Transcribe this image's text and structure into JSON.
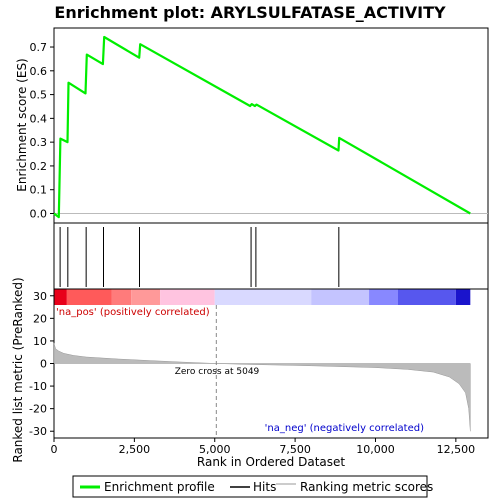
{
  "chart_data": {
    "type": "line",
    "title": "Enrichment plot: ARYLSULFATASE_ACTIVITY",
    "es_panel": {
      "ylabel": "Enrichment score (ES)",
      "ylim": [
        -0.04,
        0.78
      ],
      "yticks": [
        0.0,
        0.1,
        0.2,
        0.3,
        0.4,
        0.5,
        0.6,
        0.7
      ],
      "ytick_labels": [
        "0.0",
        "0.1",
        "0.2",
        "0.3",
        "0.4",
        "0.5",
        "0.6",
        "0.7"
      ],
      "series": [
        {
          "name": "Enrichment profile",
          "color": "#00ee00",
          "x": [
            0,
            150,
            200,
            420,
            450,
            980,
            1020,
            1520,
            1560,
            2650,
            2680,
            6100,
            6150,
            6250,
            6300,
            8850,
            8870,
            12950
          ],
          "y": [
            0.0,
            -0.015,
            0.315,
            0.3,
            0.55,
            0.505,
            0.668,
            0.628,
            0.742,
            0.655,
            0.712,
            0.452,
            0.46,
            0.452,
            0.458,
            0.265,
            0.318,
            0.0
          ]
        }
      ]
    },
    "hits": [
      190,
      430,
      1000,
      1540,
      2660,
      6130,
      6280,
      8860
    ],
    "color_bar": {
      "segments": [
        {
          "from": 0,
          "to": 400,
          "color": "#e8001a"
        },
        {
          "from": 400,
          "to": 1800,
          "color": "#ff5a5a"
        },
        {
          "from": 1800,
          "to": 2400,
          "color": "#ff7b7b"
        },
        {
          "from": 2400,
          "to": 3300,
          "color": "#ff9999"
        },
        {
          "from": 3300,
          "to": 5000,
          "color": "#ffc4e0"
        },
        {
          "from": 5000,
          "to": 8000,
          "color": "#d9d9ff"
        },
        {
          "from": 8000,
          "to": 9800,
          "color": "#c4c4ff"
        },
        {
          "from": 9800,
          "to": 10700,
          "color": "#8888ff"
        },
        {
          "from": 10700,
          "to": 12500,
          "color": "#5757ee"
        },
        {
          "from": 12500,
          "to": 12950,
          "color": "#1a14cc"
        }
      ]
    },
    "metric_panel": {
      "ylabel": "Ranked list metric (PreRanked)",
      "ylim": [
        -33,
        33
      ],
      "yticks": [
        -30,
        -20,
        -10,
        0,
        10,
        20,
        30
      ],
      "ytick_labels": [
        "-30",
        "-20",
        "-10",
        "0",
        "10",
        "20",
        "30"
      ],
      "x": [
        0,
        50,
        150,
        300,
        600,
        1000,
        2000,
        3000,
        4000,
        5049,
        6000,
        8000,
        10000,
        11000,
        11800,
        12300,
        12600,
        12800,
        12900,
        12950
      ],
      "y": [
        9.0,
        6.5,
        5.5,
        4.5,
        3.6,
        2.9,
        2.0,
        1.3,
        0.6,
        0.0,
        -0.4,
        -1.0,
        -1.8,
        -2.6,
        -3.8,
        -6.0,
        -9.0,
        -13.0,
        -20.0,
        -30.0
      ],
      "zero_cross_label": "Zero cross at 5049",
      "zero_cross": 5049,
      "pos_label": "'na_pos' (positively correlated)",
      "neg_label": "'na_neg' (negatively correlated)"
    },
    "x_axis": {
      "xlabel": "Rank in Ordered Dataset",
      "xlim": [
        0,
        13500
      ],
      "xticks": [
        0,
        2500,
        5000,
        7500,
        10000,
        12500
      ],
      "xtick_labels": [
        "0",
        "2,500",
        "5,000",
        "7,500",
        "10,000",
        "12,500"
      ]
    },
    "legend": {
      "placement": "bottom",
      "items": [
        {
          "label": "Enrichment profile",
          "color": "#00ee00"
        },
        {
          "label": "Hits",
          "color": "#000000"
        },
        {
          "label": "Ranking metric scores",
          "color": "#bbbbbb"
        }
      ]
    }
  }
}
